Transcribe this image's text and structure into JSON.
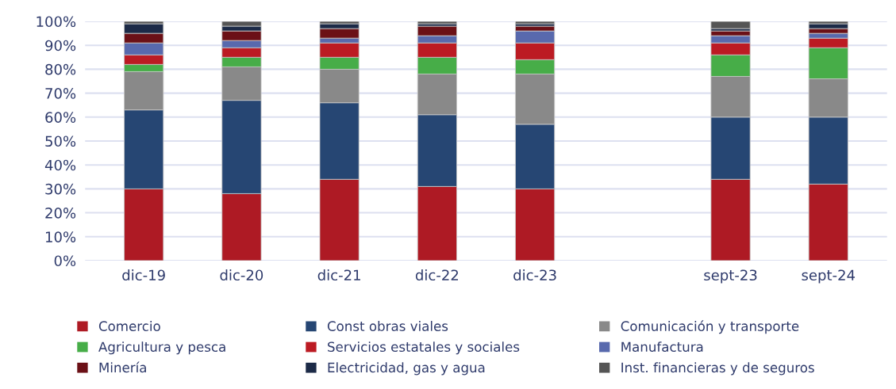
{
  "chart_data": {
    "type": "bar",
    "stacked": true,
    "categories": [
      "dic-19",
      "dic-20",
      "dic-21",
      "dic-22",
      "dic-23",
      null,
      "sept-23",
      "sept-24"
    ],
    "series": [
      {
        "name": "Comercio",
        "color": "#ae1a24",
        "values": [
          30,
          28,
          34,
          31,
          30,
          null,
          34,
          32
        ]
      },
      {
        "name": "Const obras viales",
        "color": "#264673",
        "values": [
          33,
          39,
          32,
          30,
          27,
          null,
          26,
          28
        ]
      },
      {
        "name": "Comunicación y transporte",
        "color": "#898989",
        "values": [
          16,
          14,
          14,
          17,
          21,
          null,
          17,
          16
        ]
      },
      {
        "name": "Agricultura y pesca",
        "color": "#47ad48",
        "values": [
          3,
          4,
          5,
          7,
          6,
          null,
          9,
          13
        ]
      },
      {
        "name": "Servicios estatales y sociales",
        "color": "#bc1b23",
        "values": [
          4,
          4,
          6,
          6,
          7,
          null,
          5,
          4
        ]
      },
      {
        "name": "Manufactura",
        "color": "#5869ad",
        "values": [
          5,
          3,
          2,
          3,
          5,
          null,
          3,
          2
        ]
      },
      {
        "name": "Minería",
        "color": "#6b1016",
        "values": [
          4,
          4,
          4,
          4,
          2,
          null,
          2,
          2
        ]
      },
      {
        "name": "Electricidad, gas y agua",
        "color": "#1c2a47",
        "values": [
          4,
          2,
          2,
          1,
          1,
          null,
          1,
          2
        ]
      },
      {
        "name": "Inst. financieras y de seguros",
        "color": "#555555",
        "values": [
          1,
          2,
          1,
          1,
          1,
          null,
          3,
          1
        ]
      }
    ],
    "ylim": [
      0,
      100
    ],
    "yticks": [
      {
        "value": 0,
        "label": "0%"
      },
      {
        "value": 10,
        "label": "10%"
      },
      {
        "value": 20,
        "label": "20%"
      },
      {
        "value": 30,
        "label": "30%"
      },
      {
        "value": 40,
        "label": "40%"
      },
      {
        "value": 50,
        "label": "50%"
      },
      {
        "value": 60,
        "label": "60%"
      },
      {
        "value": 70,
        "label": "70%"
      },
      {
        "value": 80,
        "label": "80%"
      },
      {
        "value": 90,
        "label": "90%"
      },
      {
        "value": 100,
        "label": "100%"
      }
    ],
    "grid": "y",
    "legend": "bottom"
  }
}
